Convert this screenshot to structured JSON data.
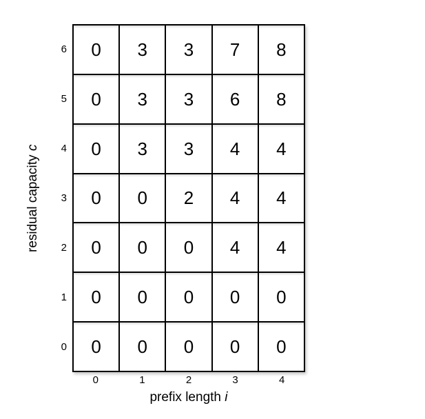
{
  "figure": {
    "background_color": "#ffffff",
    "grid_line_color": "#000000",
    "text_color": "#000000"
  },
  "axes": {
    "x": {
      "title_text": "prefix length",
      "title_var": "i",
      "ticks": [
        "0",
        "1",
        "2",
        "3",
        "4"
      ]
    },
    "y": {
      "title_text": "residual capacity",
      "title_var": "c",
      "ticks": [
        "6",
        "5",
        "4",
        "3",
        "2",
        "1",
        "0"
      ]
    }
  },
  "chart_data": {
    "type": "table",
    "xlabel": "prefix length i",
    "ylabel": "residual capacity c",
    "x_values": [
      0,
      1,
      2,
      3,
      4
    ],
    "y_values_top_to_bottom": [
      6,
      5,
      4,
      3,
      2,
      1,
      0
    ],
    "matrix": [
      [
        0,
        3,
        3,
        7,
        8
      ],
      [
        0,
        3,
        3,
        6,
        8
      ],
      [
        0,
        3,
        3,
        4,
        4
      ],
      [
        0,
        0,
        2,
        4,
        4
      ],
      [
        0,
        0,
        0,
        4,
        4
      ],
      [
        0,
        0,
        0,
        0,
        0
      ],
      [
        0,
        0,
        0,
        0,
        0
      ]
    ],
    "grid": true,
    "legend": false
  }
}
